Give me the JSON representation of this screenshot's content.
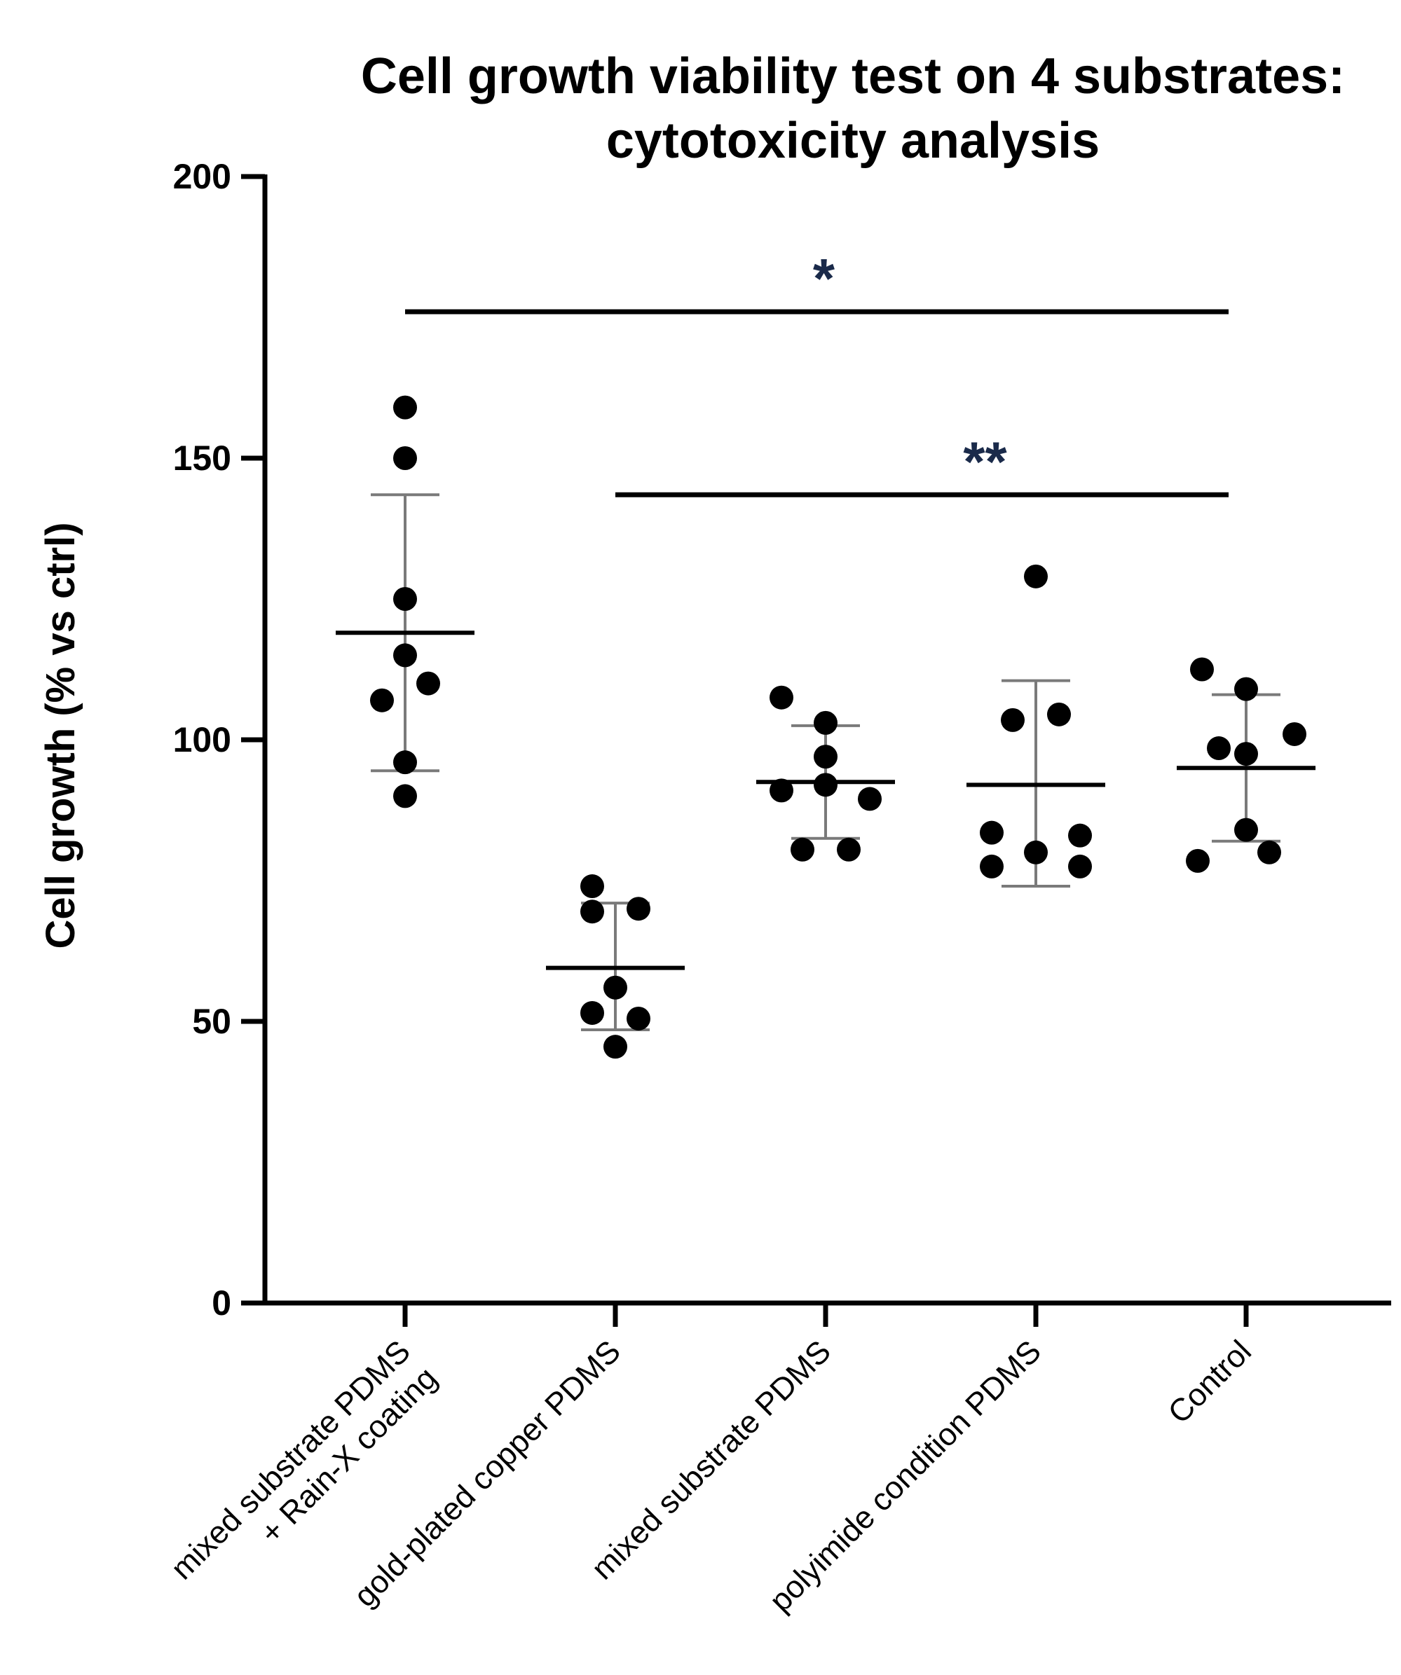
{
  "chart_data": {
    "type": "scatter",
    "title": [
      "Cell growth viability test on 4 substrates:",
      "cytotoxicity analysis"
    ],
    "xlabel": "",
    "ylabel": "Cell growth (% vs ctrl)",
    "ylim": [
      0,
      200
    ],
    "yticks": [
      0,
      50,
      100,
      150,
      200
    ],
    "grid": false,
    "legend": "none",
    "colors": {
      "points": "#000000",
      "axes": "#000000",
      "errorbars": "#7a7a7a",
      "significance": "#1a2a4a"
    },
    "categories": [
      {
        "label_lines": [
          "mixed substrate PDMS",
          "+ Rain-X coating"
        ]
      },
      {
        "label_lines": [
          "gold-plated copper PDMS"
        ]
      },
      {
        "label_lines": [
          "mixed substrate PDMS"
        ]
      },
      {
        "label_lines": [
          "polyimide condition PDMS"
        ]
      },
      {
        "label_lines": [
          "Control"
        ]
      }
    ],
    "series": [
      {
        "name": "mixed substrate PDMS + Rain-X coating",
        "points": [
          {
            "dx": 0,
            "y": 159
          },
          {
            "dx": 0,
            "y": 150
          },
          {
            "dx": 0,
            "y": 125
          },
          {
            "dx": 0,
            "y": 115
          },
          {
            "dx": -0.11,
            "y": 107
          },
          {
            "dx": 0.11,
            "y": 110
          },
          {
            "dx": 0,
            "y": 96
          },
          {
            "dx": 0,
            "y": 90
          }
        ],
        "mean": 119,
        "sd_upper": 143.5,
        "sd_lower": 94.5
      },
      {
        "name": "gold-plated copper PDMS",
        "points": [
          {
            "dx": -0.11,
            "y": 74
          },
          {
            "dx": -0.11,
            "y": 69.5
          },
          {
            "dx": 0.11,
            "y": 70
          },
          {
            "dx": 0,
            "y": 56
          },
          {
            "dx": -0.11,
            "y": 51.5
          },
          {
            "dx": 0.11,
            "y": 50.5
          },
          {
            "dx": 0,
            "y": 45.5
          }
        ],
        "mean": 59.5,
        "sd_upper": 71,
        "sd_lower": 48.5
      },
      {
        "name": "mixed substrate PDMS",
        "points": [
          {
            "dx": -0.21,
            "y": 107.5
          },
          {
            "dx": 0,
            "y": 103
          },
          {
            "dx": 0,
            "y": 97
          },
          {
            "dx": -0.21,
            "y": 91
          },
          {
            "dx": 0,
            "y": 92
          },
          {
            "dx": 0.21,
            "y": 89.5
          },
          {
            "dx": -0.11,
            "y": 80.5
          },
          {
            "dx": 0.11,
            "y": 80.5
          }
        ],
        "mean": 92.5,
        "sd_upper": 102.5,
        "sd_lower": 82.5
      },
      {
        "name": "polyimide condition PDMS",
        "points": [
          {
            "dx": 0,
            "y": 129
          },
          {
            "dx": -0.11,
            "y": 103.5
          },
          {
            "dx": 0.11,
            "y": 104.5
          },
          {
            "dx": -0.21,
            "y": 83.5
          },
          {
            "dx": 0.21,
            "y": 83
          },
          {
            "dx": 0,
            "y": 80
          },
          {
            "dx": -0.21,
            "y": 77.5
          },
          {
            "dx": 0.21,
            "y": 77.5
          }
        ],
        "mean": 92,
        "sd_upper": 110.5,
        "sd_lower": 74
      },
      {
        "name": "Control",
        "points": [
          {
            "dx": -0.21,
            "y": 112.5
          },
          {
            "dx": 0,
            "y": 109
          },
          {
            "dx": 0.23,
            "y": 101
          },
          {
            "dx": -0.13,
            "y": 98.5
          },
          {
            "dx": 0,
            "y": 97.5
          },
          {
            "dx": 0,
            "y": 84
          },
          {
            "dx": -0.23,
            "y": 78.5
          },
          {
            "dx": 0.11,
            "y": 80
          }
        ],
        "mean": 95,
        "sd_upper": 108,
        "sd_lower": 82
      }
    ],
    "significance": [
      {
        "from": 0,
        "to": 4,
        "y": 176,
        "label": "*"
      },
      {
        "from": 1,
        "to": 4,
        "y": 143.5,
        "label": "**"
      }
    ]
  }
}
